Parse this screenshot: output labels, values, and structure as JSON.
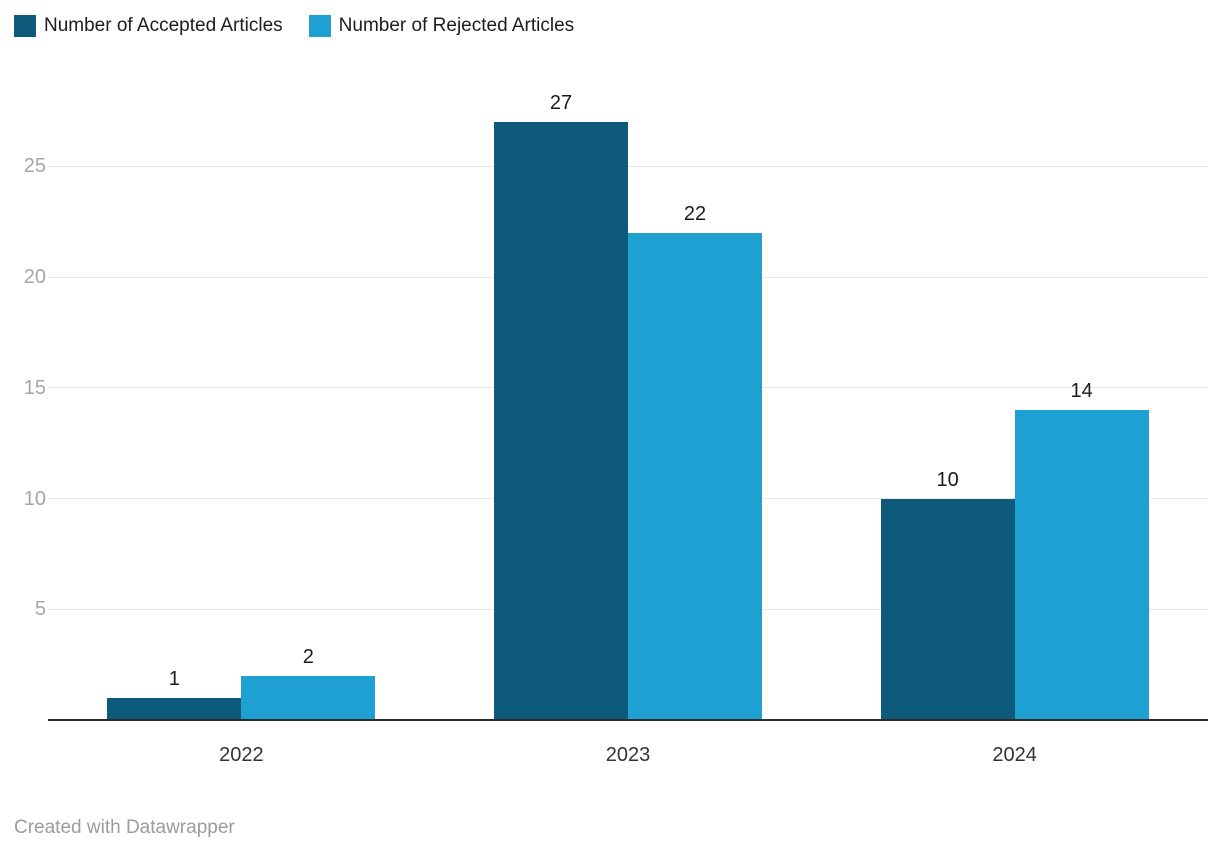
{
  "legend": {
    "position": "top-left"
  },
  "footer": {
    "credit": "Created with Datawrapper"
  },
  "chart_data": {
    "type": "bar",
    "title": "",
    "xlabel": "",
    "ylabel": "",
    "categories": [
      "2022",
      "2023",
      "2024"
    ],
    "series": [
      {
        "name": "Number of Accepted Articles",
        "color": "#0e5a7a",
        "values": [
          1,
          27,
          10
        ]
      },
      {
        "name": "Number of Rejected Articles",
        "color": "#1fa0d2",
        "values": [
          2,
          22,
          14
        ]
      }
    ],
    "y_ticks": [
      5,
      10,
      15,
      20,
      25
    ],
    "ylim": [
      0,
      27
    ],
    "grid": "horizontal",
    "legend_position": "top-left",
    "value_labels": true,
    "axis_text_color": "#a6a6a6",
    "gridline_color": "#e8e8e8",
    "axis_line_color": "#2b2b2b"
  }
}
